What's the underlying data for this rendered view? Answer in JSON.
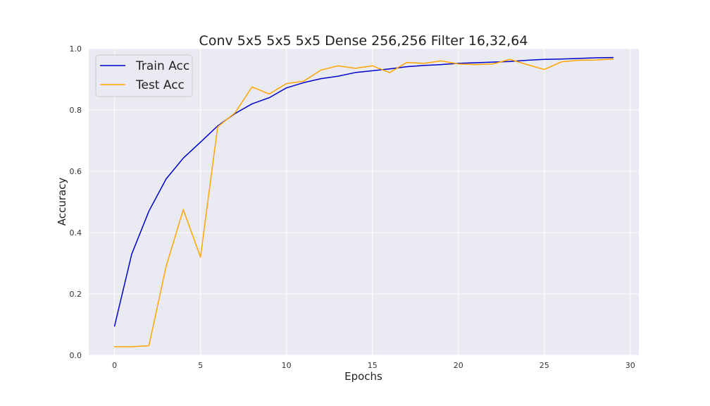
{
  "chart_data": {
    "type": "line",
    "title": "Conv 5x5 5x5 5x5 Dense 256,256 Filter 16,32,64",
    "xlabel": "Epochs",
    "ylabel": "Accuracy",
    "xlim": [
      -1.5,
      30.5
    ],
    "ylim": [
      0.0,
      1.0
    ],
    "xticks": [
      0,
      5,
      10,
      15,
      20,
      25,
      30
    ],
    "yticks": [
      0.0,
      0.2,
      0.4,
      0.6,
      0.8,
      1.0
    ],
    "xtick_labels": [
      "0",
      "5",
      "10",
      "15",
      "20",
      "25",
      "30"
    ],
    "ytick_labels": [
      "0.0",
      "0.2",
      "0.4",
      "0.6",
      "0.8",
      "1.0"
    ],
    "grid": true,
    "legend_position": "top-left",
    "x": [
      0,
      1,
      2,
      3,
      4,
      5,
      6,
      7,
      8,
      9,
      10,
      11,
      12,
      13,
      14,
      15,
      16,
      17,
      18,
      19,
      20,
      21,
      22,
      23,
      24,
      25,
      26,
      27,
      28,
      29
    ],
    "series": [
      {
        "name": "Train Acc",
        "color": "#0000cc",
        "values": [
          0.095,
          0.33,
          0.47,
          0.575,
          0.643,
          0.695,
          0.748,
          0.788,
          0.82,
          0.84,
          0.872,
          0.889,
          0.902,
          0.91,
          0.922,
          0.928,
          0.934,
          0.941,
          0.945,
          0.948,
          0.952,
          0.954,
          0.956,
          0.958,
          0.962,
          0.965,
          0.966,
          0.968,
          0.97,
          0.971
        ]
      },
      {
        "name": "Test Acc",
        "color": "#ffa500",
        "values": [
          0.028,
          0.028,
          0.031,
          0.29,
          0.475,
          0.32,
          0.745,
          0.79,
          0.875,
          0.852,
          0.886,
          0.894,
          0.93,
          0.944,
          0.936,
          0.944,
          0.922,
          0.955,
          0.952,
          0.96,
          0.95,
          0.948,
          0.95,
          0.965,
          0.948,
          0.932,
          0.957,
          0.962,
          0.963,
          0.966
        ]
      }
    ]
  }
}
